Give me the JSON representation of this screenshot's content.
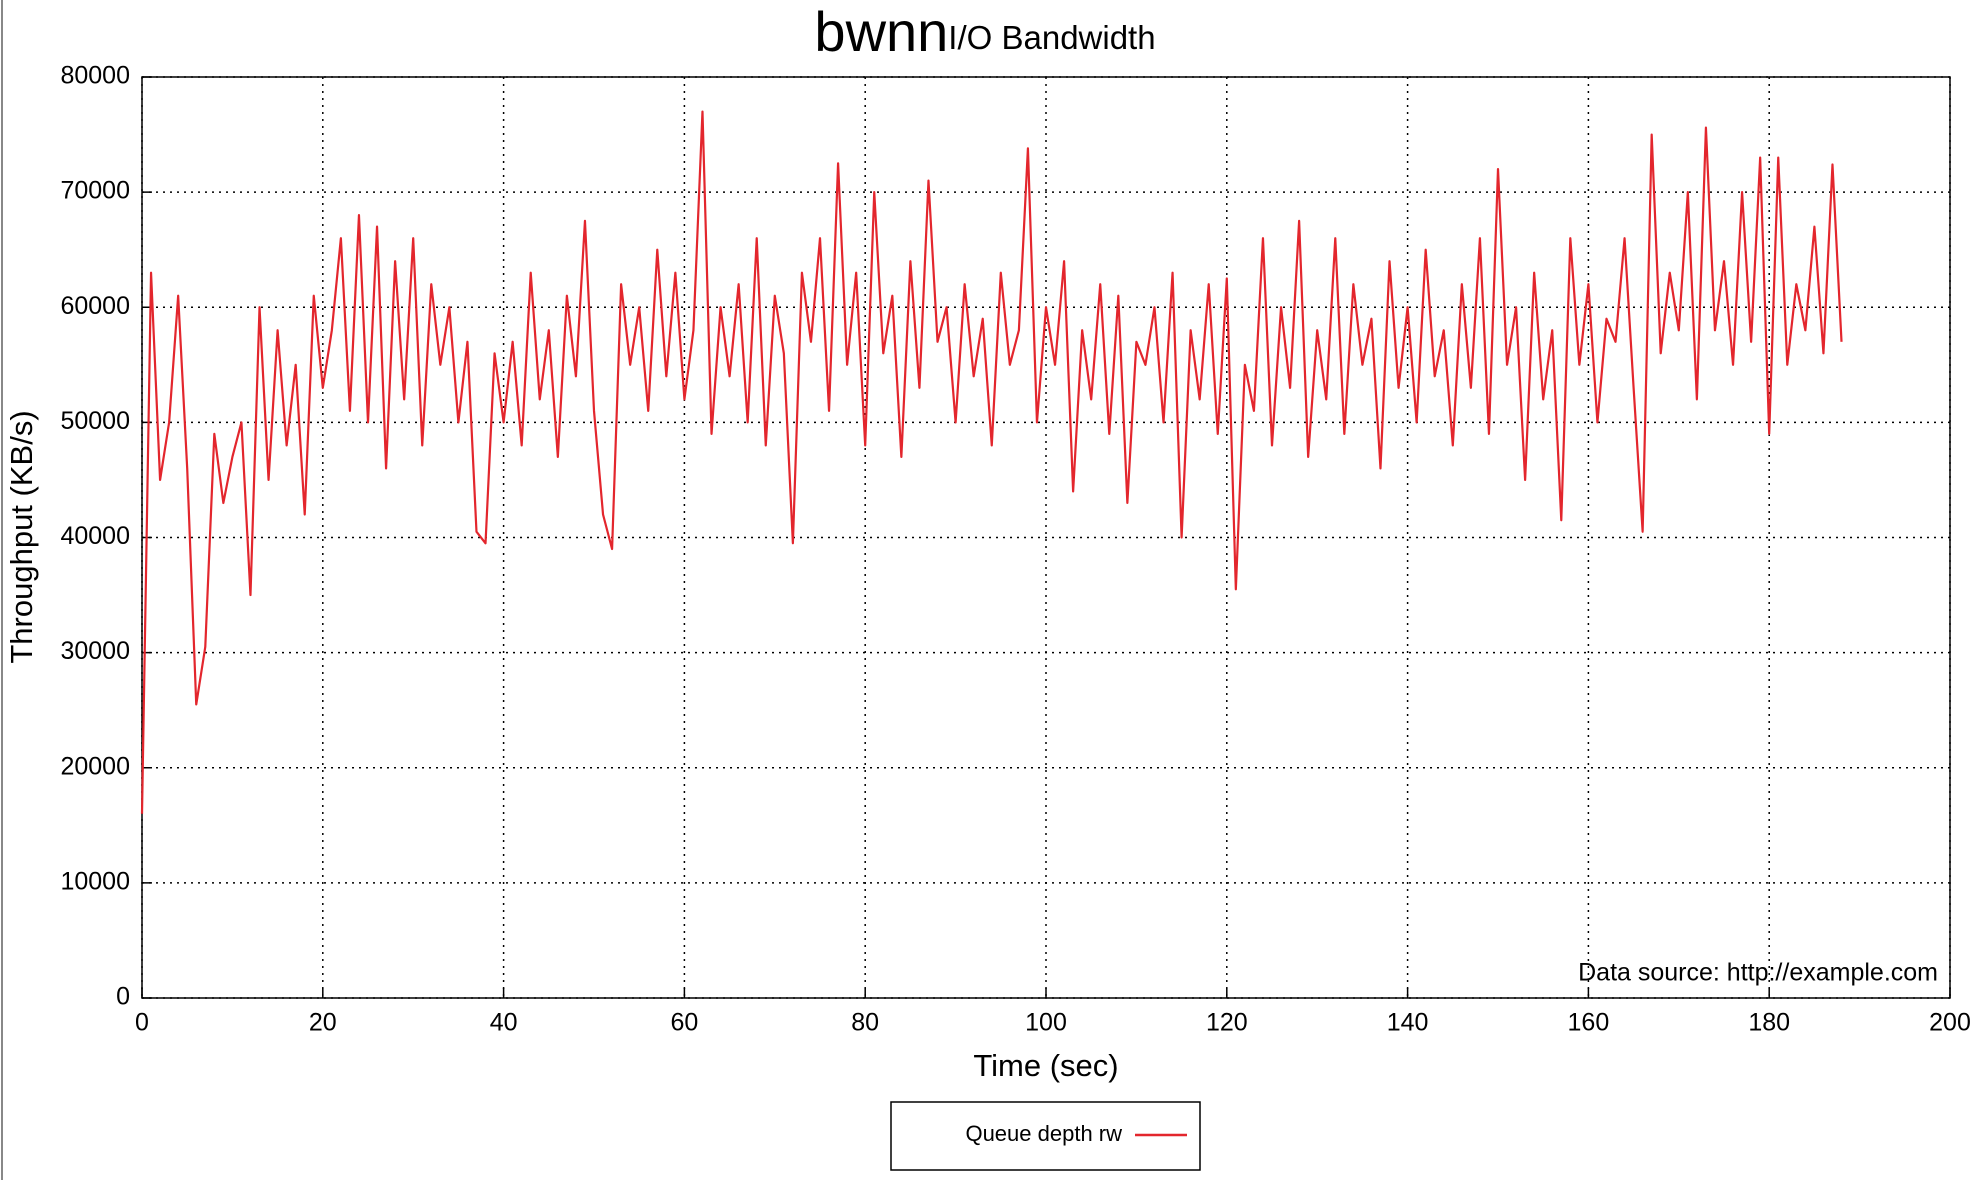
{
  "chart_data": {
    "type": "line",
    "title": "bwnn",
    "subtitle": "I/O Bandwidth",
    "x_label": "Time (sec)",
    "y_label": "Throughput (KB/s)",
    "annotation": "Data source: http://example.com",
    "xlim": [
      0,
      200
    ],
    "xticks": [
      0,
      20,
      40,
      60,
      80,
      100,
      120,
      140,
      160,
      180,
      200
    ],
    "ylim": [
      0,
      80000
    ],
    "yticks": [
      0,
      10000,
      20000,
      30000,
      40000,
      50000,
      60000,
      70000,
      80000
    ],
    "grid": true,
    "x": [
      0,
      1,
      2,
      3,
      4,
      5,
      6,
      7,
      8,
      9,
      10,
      11,
      12,
      13,
      14,
      15,
      16,
      17,
      18,
      19,
      20,
      21,
      22,
      23,
      24,
      25,
      26,
      27,
      28,
      29,
      30,
      31,
      32,
      33,
      34,
      35,
      36,
      37,
      38,
      39,
      40,
      41,
      42,
      43,
      44,
      45,
      46,
      47,
      48,
      49,
      50,
      51,
      52,
      53,
      54,
      55,
      56,
      57,
      58,
      59,
      60,
      61,
      62,
      63,
      64,
      65,
      66,
      67,
      68,
      69,
      70,
      71,
      72,
      73,
      74,
      75,
      76,
      77,
      78,
      79,
      80,
      81,
      82,
      83,
      84,
      85,
      86,
      87,
      88,
      89,
      90,
      91,
      92,
      93,
      94,
      95,
      96,
      97,
      98,
      99,
      100,
      101,
      102,
      103,
      104,
      105,
      106,
      107,
      108,
      109,
      110,
      111,
      112,
      113,
      114,
      115,
      116,
      117,
      118,
      119,
      120,
      121,
      122,
      123,
      124,
      125,
      126,
      127,
      128,
      129,
      130,
      131,
      132,
      133,
      134,
      135,
      136,
      137,
      138,
      139,
      140,
      141,
      142,
      143,
      144,
      145,
      146,
      147,
      148,
      149,
      150,
      151,
      152,
      153,
      154,
      155,
      156,
      157,
      158,
      159,
      160,
      161,
      162,
      163,
      164,
      165,
      166,
      167,
      168,
      169,
      170,
      171,
      172,
      173,
      174,
      175,
      176,
      177,
      178,
      179,
      180,
      181,
      182,
      183,
      184,
      185,
      186,
      187,
      188
    ],
    "series": [
      {
        "name": "Queue depth rw",
        "color": "#e3262d",
        "values": [
          16000,
          63000,
          45000,
          50000,
          61000,
          46000,
          25500,
          30500,
          49000,
          43000,
          47000,
          50000,
          35000,
          60000,
          45000,
          58000,
          48000,
          55000,
          42000,
          61000,
          53000,
          58000,
          66000,
          51000,
          68000,
          50000,
          67000,
          46000,
          64000,
          52000,
          66000,
          48000,
          62000,
          55000,
          60000,
          50000,
          57000,
          40500,
          39500,
          56000,
          50000,
          57000,
          48000,
          63000,
          52000,
          58000,
          47000,
          61000,
          54000,
          67500,
          51000,
          42000,
          39000,
          62000,
          55000,
          60000,
          51000,
          65000,
          54000,
          63000,
          52000,
          58000,
          77000,
          49000,
          60000,
          54000,
          62000,
          50000,
          66000,
          48000,
          61000,
          56000,
          39500,
          63000,
          57000,
          66000,
          51000,
          72500,
          55000,
          63000,
          48000,
          70000,
          56000,
          61000,
          47000,
          64000,
          53000,
          71000,
          57000,
          60000,
          50000,
          62000,
          54000,
          59000,
          48000,
          63000,
          55000,
          58000,
          73800,
          50000,
          60000,
          55000,
          64000,
          44000,
          58000,
          52000,
          62000,
          49000,
          61000,
          43000,
          57000,
          55000,
          60000,
          50000,
          63000,
          40000,
          58000,
          52000,
          62000,
          49000,
          62500,
          35500,
          55000,
          51000,
          66000,
          48000,
          60000,
          53000,
          67500,
          47000,
          58000,
          52000,
          66000,
          49000,
          62000,
          55000,
          59000,
          46000,
          64000,
          53000,
          60000,
          50000,
          65000,
          54000,
          58000,
          48000,
          62000,
          53000,
          66000,
          49000,
          72000,
          55000,
          60000,
          45000,
          63000,
          52000,
          58000,
          41500,
          66000,
          55000,
          62000,
          50000,
          59000,
          57000,
          66000,
          53000,
          40500,
          75000,
          56000,
          63000,
          58000,
          70000,
          52000,
          75600,
          58000,
          64000,
          55000,
          70000,
          57000,
          73000,
          49000,
          73000,
          55000,
          62000,
          58000,
          67000,
          56000,
          72400,
          57000
        ]
      }
    ]
  }
}
